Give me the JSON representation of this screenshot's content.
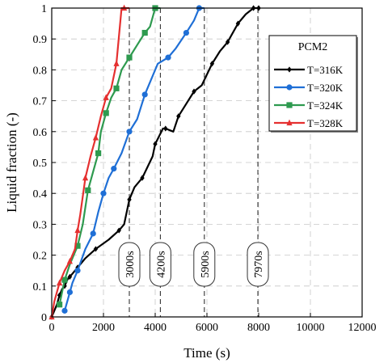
{
  "chart_data": {
    "type": "line",
    "xlabel": "Time (s)",
    "ylabel": "Liquid fraction (-)",
    "xlim": [
      0,
      12000
    ],
    "ylim": [
      0,
      1
    ],
    "xticks": [
      0,
      2000,
      4000,
      6000,
      8000,
      10000,
      12000
    ],
    "yticks": [
      0,
      0.1,
      0.2,
      0.3,
      0.4,
      0.5,
      0.6,
      0.7,
      0.8,
      0.9,
      1
    ],
    "xtick_labels": [
      "0",
      "2000",
      "4000",
      "6000",
      "8000",
      "10000",
      "12000"
    ],
    "ytick_labels": [
      "0",
      "0.1",
      "0.2",
      "0.3",
      "0.4",
      "0.5",
      "0.6",
      "0.7",
      "0.8",
      "0.9",
      "1"
    ],
    "grid": true,
    "legend": {
      "title": "PCM2",
      "position": "top-right"
    },
    "vertical_lines": [
      {
        "x": 3000,
        "label": "3000s"
      },
      {
        "x": 4200,
        "label": "4200s"
      },
      {
        "x": 5900,
        "label": "5900s"
      },
      {
        "x": 7970,
        "label": "7970s"
      }
    ],
    "series": [
      {
        "name": "T=316K",
        "color": "#000000",
        "marker": "diamond",
        "x": [
          0,
          200,
          300,
          400,
          500,
          600,
          700,
          800,
          1000,
          1300,
          1700,
          2200,
          2600,
          2800,
          3000,
          3200,
          3500,
          3900,
          4000,
          4300,
          4400,
          4700,
          4900,
          5200,
          5500,
          5800,
          6200,
          6500,
          6800,
          7000,
          7200,
          7500,
          7800,
          7970,
          8000
        ],
        "y": [
          0,
          0.04,
          0.07,
          0.09,
          0.1,
          0.12,
          0.13,
          0.14,
          0.16,
          0.19,
          0.22,
          0.25,
          0.28,
          0.3,
          0.38,
          0.42,
          0.45,
          0.52,
          0.56,
          0.61,
          0.61,
          0.6,
          0.65,
          0.69,
          0.73,
          0.75,
          0.82,
          0.86,
          0.89,
          0.92,
          0.95,
          0.98,
          1.0,
          1.0,
          1.0
        ]
      },
      {
        "name": "T=320K",
        "color": "#1f6fd6",
        "marker": "circle",
        "x": [
          500,
          600,
          700,
          800,
          1000,
          1300,
          1600,
          1800,
          2000,
          2200,
          2400,
          2700,
          3000,
          3300,
          3600,
          4100,
          4500,
          4800,
          5200,
          5500,
          5700,
          5900
        ],
        "y": [
          0.02,
          0.05,
          0.08,
          0.11,
          0.15,
          0.22,
          0.27,
          0.34,
          0.4,
          0.45,
          0.48,
          0.53,
          0.6,
          0.64,
          0.72,
          0.82,
          0.84,
          0.87,
          0.92,
          0.96,
          1.0,
          1.0
        ]
      },
      {
        "name": "T=324K",
        "color": "#2e9a4f",
        "marker": "square",
        "x": [
          300,
          400,
          500,
          700,
          1000,
          1200,
          1400,
          1600,
          1800,
          1900,
          2100,
          2300,
          2500,
          2700,
          3000,
          3300,
          3600,
          3800,
          4000,
          4200
        ],
        "y": [
          0.04,
          0.08,
          0.12,
          0.17,
          0.23,
          0.3,
          0.41,
          0.47,
          0.53,
          0.6,
          0.66,
          0.71,
          0.74,
          0.8,
          0.84,
          0.88,
          0.92,
          0.94,
          1.0,
          1.0
        ]
      },
      {
        "name": "T=328K",
        "color": "#e53030",
        "marker": "triangle",
        "x": [
          0,
          100,
          300,
          500,
          700,
          900,
          1000,
          1100,
          1300,
          1500,
          1700,
          1900,
          2100,
          2300,
          2500,
          2700,
          2800,
          3000
        ],
        "y": [
          0,
          0.05,
          0.11,
          0.15,
          0.18,
          0.22,
          0.28,
          0.33,
          0.45,
          0.52,
          0.58,
          0.65,
          0.71,
          0.74,
          0.82,
          1.0,
          1.0,
          1.0
        ]
      }
    ]
  }
}
